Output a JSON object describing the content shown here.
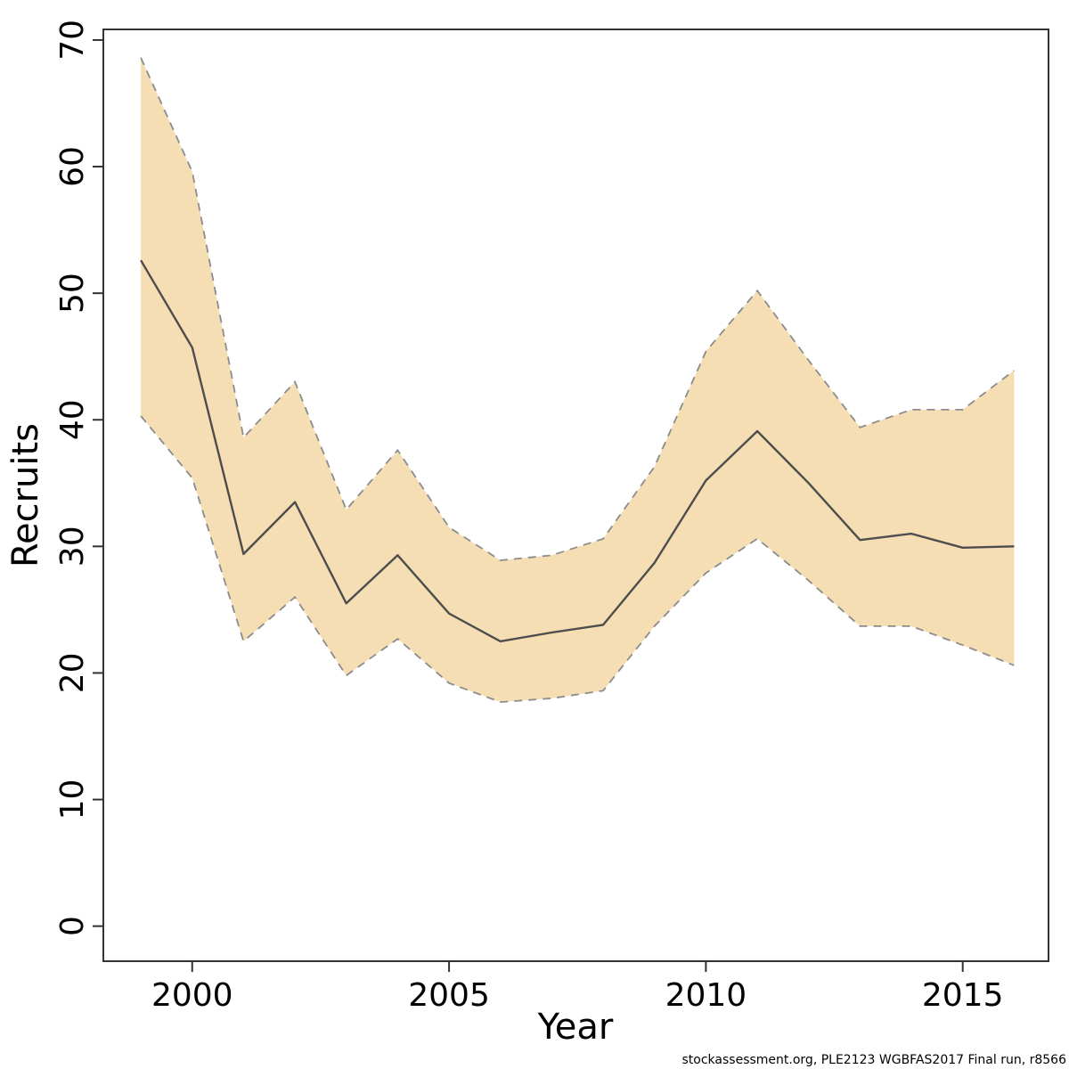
{
  "figure": {
    "xlabel": "Year",
    "ylabel": "Recruits",
    "footer": "stockassessment.org, PLE2123 WGBFAS2017 Final run, r8566"
  },
  "chart_data": {
    "type": "line",
    "title": "",
    "xlabel": "Year",
    "ylabel": "Recruits",
    "x": [
      1999,
      2000,
      2001,
      2002,
      2003,
      2004,
      2005,
      2006,
      2007,
      2008,
      2009,
      2010,
      2011,
      2012,
      2013,
      2014,
      2015,
      2016
    ],
    "series": [
      {
        "name": "median_recruits",
        "style": "solid",
        "color": "#4d4d4d",
        "width": 2.4,
        "values": [
          52.6,
          45.7,
          29.4,
          33.5,
          25.5,
          29.3,
          24.7,
          22.5,
          23.2,
          23.8,
          28.7,
          35.2,
          39.1,
          35.0,
          30.5,
          31.0,
          29.9,
          30.0
        ]
      },
      {
        "name": "upper_confidence_bound",
        "style": "dashed",
        "color": "#8c8c8c",
        "width": 1.8,
        "values": [
          68.6,
          59.6,
          38.6,
          43.0,
          32.9,
          37.6,
          31.5,
          28.9,
          29.3,
          30.6,
          36.3,
          45.4,
          50.2,
          44.7,
          39.4,
          40.8,
          40.8,
          43.9
        ]
      },
      {
        "name": "lower_confidence_bound",
        "style": "dashed",
        "color": "#8c8c8c",
        "width": 1.8,
        "values": [
          40.3,
          35.4,
          22.5,
          26.0,
          19.8,
          22.7,
          19.2,
          17.7,
          18.0,
          18.6,
          23.7,
          27.9,
          30.6,
          27.3,
          23.7,
          23.7,
          22.2,
          20.6
        ]
      }
    ],
    "band": {
      "upper_series": "upper_confidence_bound",
      "lower_series": "lower_confidence_bound",
      "fill": "#f5deb3"
    },
    "xticks": [
      2000,
      2005,
      2010,
      2015
    ],
    "yticks": [
      0,
      10,
      20,
      30,
      40,
      50,
      60,
      70
    ],
    "xlim": [
      1998.27,
      2016.67
    ],
    "ylim": [
      -2.77,
      70.84
    ],
    "grid": false,
    "legend": "none",
    "axis_color": "#333333"
  }
}
